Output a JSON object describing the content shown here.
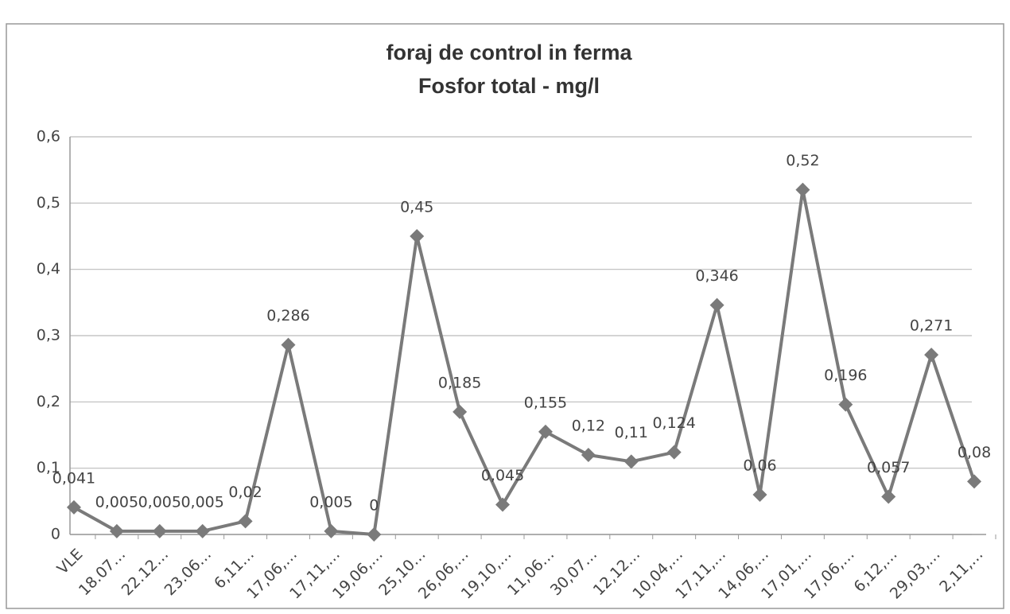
{
  "chart_data": {
    "type": "line",
    "title": "foraj de control in ferma",
    "subtitle": "Fosfor total - mg/l",
    "categories": [
      "VLE",
      "18.07…",
      "22.12…",
      "23.06…",
      "6,11…",
      "17,06,…",
      "17,11,…",
      "19,06,…",
      "25,10…",
      "26,06,…",
      "19,10,…",
      "11,06…",
      "30,07…",
      "12,12…",
      "10,04,…",
      "17,11,…",
      "14,06,…",
      "17,01,…",
      "17,06,…",
      "6,12,…",
      "29,03,…",
      "2,11,…"
    ],
    "series": [
      {
        "color": "#7a7a7a",
        "values": [
          0.041,
          0.005,
          0.005,
          0.005,
          0.02,
          0.286,
          0.005,
          0,
          0.45,
          0.185,
          0.045,
          0.155,
          0.12,
          0.11,
          0.124,
          0.346,
          0.06,
          0.52,
          0.196,
          0.057,
          0.271,
          0.08
        ],
        "value_labels": [
          "0,041",
          "0,005",
          "0,005",
          "0,005",
          "0,02",
          "0,286",
          "0,005",
          "0",
          "0,45",
          "0,185",
          "0,045",
          "0,155",
          "0,12",
          "0,11",
          "0,124",
          "0,346",
          "0,06",
          "0,52",
          "0,196",
          "0,057",
          "0,271",
          "0,08"
        ]
      }
    ],
    "ylim": [
      0,
      0.6
    ],
    "yticks": [
      0,
      {
        "value": 0.1,
        "label": "0,1"
      },
      {
        "value": 0.2,
        "label": "0,2"
      },
      {
        "value": 0.3,
        "label": "0,3"
      },
      {
        "value": 0.4,
        "label": "0,4"
      },
      {
        "value": 0.5,
        "label": "0,5"
      },
      {
        "value": 0.6,
        "label": "0,6"
      }
    ],
    "grid": true
  }
}
